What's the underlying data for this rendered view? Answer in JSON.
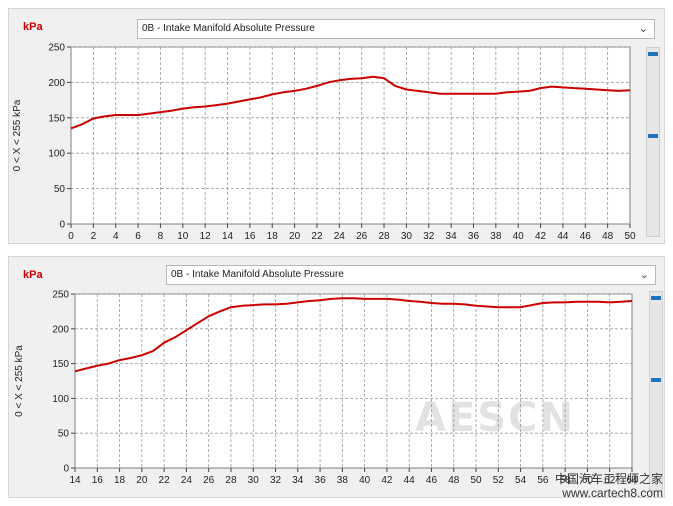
{
  "top_panel": {
    "unit_label": "kPa",
    "pid_select": "0B - Intake Manifold Absolute Pressure",
    "y_axis_label": "0  < X <  255 kPa"
  },
  "bottom_panel": {
    "unit_label": "kPa",
    "pid_select": "0B - Intake Manifold Absolute Pressure",
    "y_axis_label": "0  < X <  255 kPa"
  },
  "watermark": {
    "logo": "AESCN",
    "site_cn": "中国汽车工程师之家",
    "site_url": "www.cartech8.com"
  },
  "colors": {
    "line": "#cc0000",
    "plot_bg": "#ffffff",
    "grid": "#9a9a9a",
    "scroll_mark": "#1e73be"
  },
  "chart_data": [
    {
      "type": "line",
      "title": "",
      "xlabel": "",
      "ylabel": "0  < X <  255 kPa",
      "xlim": [
        0,
        50
      ],
      "ylim": [
        0,
        250
      ],
      "grid": true,
      "x_ticks": [
        0,
        2,
        4,
        6,
        8,
        10,
        12,
        14,
        16,
        18,
        20,
        22,
        24,
        26,
        28,
        30,
        32,
        34,
        36,
        38,
        40,
        42,
        44,
        46,
        48,
        50
      ],
      "y_ticks": [
        0,
        50,
        100,
        150,
        200,
        250
      ],
      "series": [
        {
          "x": [
            0,
            1,
            2,
            3,
            4,
            5,
            6,
            7,
            8,
            9,
            10,
            11,
            12,
            13,
            14,
            15,
            16,
            17,
            18,
            19,
            20,
            21,
            22,
            23,
            24,
            25,
            26,
            27,
            28,
            29,
            30,
            31,
            32,
            33,
            34,
            35,
            36,
            37,
            38,
            39,
            40,
            41,
            42,
            43,
            44,
            45,
            46,
            47,
            48,
            49,
            50
          ],
          "y": [
            135,
            141,
            149,
            152,
            154,
            154,
            154,
            156,
            158,
            160,
            163,
            165,
            166,
            168,
            170,
            173,
            176,
            179,
            183,
            186,
            188,
            191,
            195,
            200,
            203,
            205,
            206,
            208,
            206,
            195,
            190,
            188,
            186,
            184,
            184,
            184,
            184,
            184,
            184,
            186,
            187,
            188,
            192,
            194,
            193,
            192,
            191,
            190,
            189,
            188,
            189
          ]
        }
      ]
    },
    {
      "type": "line",
      "title": "",
      "xlabel": "",
      "ylabel": "0  < X <  255 kPa",
      "xlim": [
        14,
        64
      ],
      "ylim": [
        0,
        250
      ],
      "grid": true,
      "x_ticks": [
        14,
        16,
        18,
        20,
        22,
        24,
        26,
        28,
        30,
        32,
        34,
        36,
        38,
        40,
        42,
        44,
        46,
        48,
        50,
        52,
        54,
        56,
        58,
        60,
        62,
        64
      ],
      "y_ticks": [
        0,
        50,
        100,
        150,
        200,
        250
      ],
      "series": [
        {
          "x": [
            14,
            15,
            16,
            17,
            18,
            19,
            20,
            21,
            22,
            23,
            24,
            25,
            26,
            27,
            28,
            29,
            30,
            31,
            32,
            33,
            34,
            35,
            36,
            37,
            38,
            39,
            40,
            41,
            42,
            43,
            44,
            45,
            46,
            47,
            48,
            49,
            50,
            51,
            52,
            53,
            54,
            55,
            56,
            57,
            58,
            59,
            60,
            61,
            62,
            63,
            64
          ],
          "y": [
            139,
            143,
            147,
            150,
            155,
            158,
            162,
            168,
            180,
            188,
            198,
            208,
            218,
            225,
            231,
            233,
            234,
            235,
            235,
            236,
            238,
            240,
            241,
            243,
            244,
            244,
            243,
            243,
            243,
            242,
            240,
            239,
            237,
            236,
            236,
            235,
            233,
            232,
            231,
            231,
            231,
            234,
            237,
            238,
            238,
            239,
            239,
            239,
            238,
            239,
            240
          ]
        }
      ]
    }
  ]
}
